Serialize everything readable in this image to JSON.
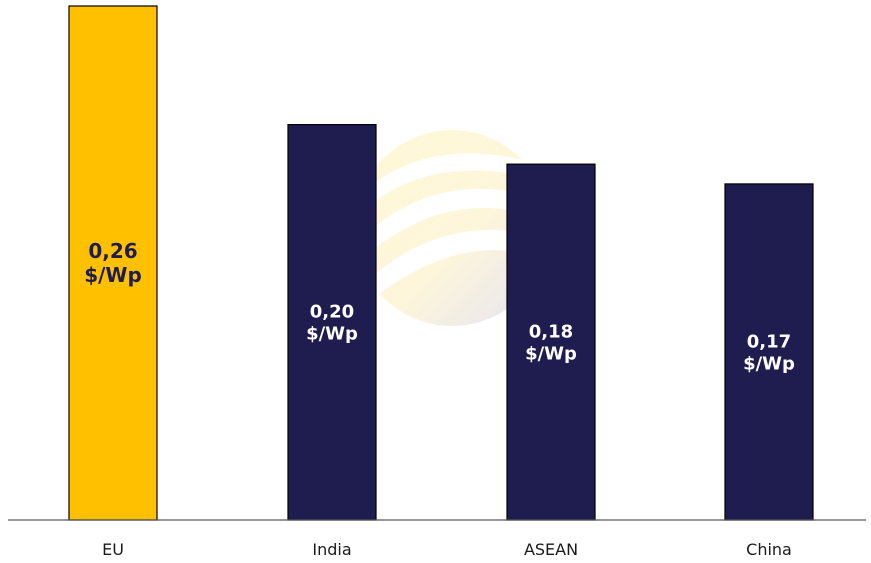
{
  "chart_data": {
    "type": "bar",
    "categories": [
      "EU",
      "India",
      "ASEAN",
      "China"
    ],
    "values": [
      0.26,
      0.2,
      0.18,
      0.17
    ],
    "data_labels": [
      [
        "0,26",
        "$/Wp"
      ],
      [
        "0,20",
        "$/Wp"
      ],
      [
        "0,18",
        "$/Wp"
      ],
      [
        "0,17",
        "$/Wp"
      ]
    ],
    "unit": "$/Wp",
    "title": "",
    "xlabel": "",
    "ylabel": "",
    "ylim": [
      0,
      0.26
    ],
    "grid": false,
    "legend": "none",
    "colors": {
      "highlight": "#FFC000",
      "default": "#1F1D4F",
      "label_on_highlight": "#1F1D4F",
      "label_on_default": "#FFFFFF",
      "axis": "#595959",
      "bar_outline": "#000000"
    }
  }
}
